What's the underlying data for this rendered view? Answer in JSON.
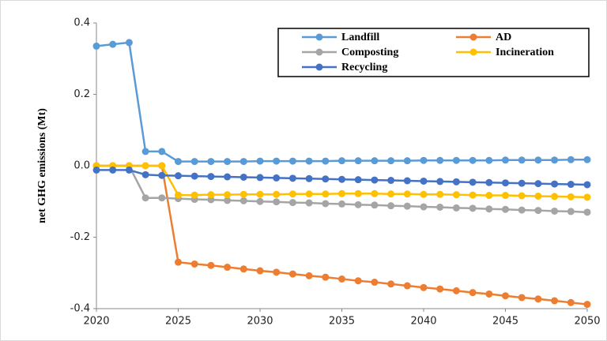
{
  "chart_data": {
    "type": "line",
    "y_label": "net GHG emissions (Mt)",
    "x": [
      2020,
      2021,
      2022,
      2023,
      2024,
      2025,
      2026,
      2027,
      2028,
      2029,
      2030,
      2031,
      2032,
      2033,
      2034,
      2035,
      2036,
      2037,
      2038,
      2039,
      2040,
      2041,
      2042,
      2043,
      2044,
      2045,
      2046,
      2047,
      2048,
      2049,
      2050
    ],
    "xlim": [
      2020,
      2050
    ],
    "xticks": [
      2020,
      2025,
      2030,
      2035,
      2040,
      2045,
      2050
    ],
    "ylim": [
      -0.4,
      0.4
    ],
    "yticks": [
      -0.4,
      -0.2,
      {
        "value": 0,
        "label": "0.0"
      },
      0.2,
      0.4
    ],
    "legend": "upper right",
    "series": [
      {
        "name": "Landfill",
        "color": "#5b9bd5",
        "values": [
          0.335,
          0.34,
          0.345,
          0.04,
          0.04,
          0.012,
          0.012,
          0.012,
          0.012,
          0.012,
          0.013,
          0.013,
          0.013,
          0.013,
          0.013,
          0.014,
          0.014,
          0.014,
          0.014,
          0.014,
          0.015,
          0.015,
          0.015,
          0.015,
          0.015,
          0.016,
          0.016,
          0.016,
          0.016,
          0.017,
          0.017
        ]
      },
      {
        "name": "AD",
        "color": "#ed7d31",
        "values": [
          0,
          0,
          0,
          0,
          0,
          -0.27,
          -0.275,
          -0.279,
          -0.284,
          -0.289,
          -0.294,
          -0.298,
          -0.303,
          -0.308,
          -0.312,
          -0.317,
          -0.322,
          -0.326,
          -0.331,
          -0.336,
          -0.341,
          -0.345,
          -0.35,
          -0.355,
          -0.359,
          -0.364,
          -0.369,
          -0.373,
          -0.378,
          -0.383,
          -0.388
        ]
      },
      {
        "name": "Composting",
        "color": "#a5a5a5",
        "values": [
          0,
          0,
          0,
          -0.09,
          -0.09,
          -0.092,
          -0.094,
          -0.095,
          -0.097,
          -0.098,
          -0.1,
          -0.101,
          -0.103,
          -0.104,
          -0.106,
          -0.107,
          -0.109,
          -0.11,
          -0.112,
          -0.113,
          -0.115,
          -0.116,
          -0.118,
          -0.119,
          -0.121,
          -0.122,
          -0.124,
          -0.125,
          -0.127,
          -0.128,
          -0.13
        ]
      },
      {
        "name": "Incineration",
        "color": "#ffc000",
        "values": [
          0,
          0,
          0,
          0,
          0,
          -0.082,
          -0.082,
          -0.081,
          -0.081,
          -0.08,
          -0.08,
          -0.08,
          -0.079,
          -0.079,
          -0.079,
          -0.078,
          -0.078,
          -0.078,
          -0.079,
          -0.079,
          -0.08,
          -0.08,
          -0.081,
          -0.082,
          -0.083,
          -0.083,
          -0.084,
          -0.085,
          -0.086,
          -0.087,
          -0.088
        ]
      },
      {
        "name": "Recycling",
        "color": "#4472c4",
        "values": [
          -0.012,
          -0.012,
          -0.012,
          -0.025,
          -0.027,
          -0.028,
          -0.029,
          -0.03,
          -0.031,
          -0.032,
          -0.033,
          -0.034,
          -0.035,
          -0.036,
          -0.037,
          -0.038,
          -0.039,
          -0.04,
          -0.041,
          -0.042,
          -0.043,
          -0.044,
          -0.045,
          -0.046,
          -0.047,
          -0.048,
          -0.049,
          -0.05,
          -0.051,
          -0.052,
          -0.053
        ]
      }
    ]
  }
}
